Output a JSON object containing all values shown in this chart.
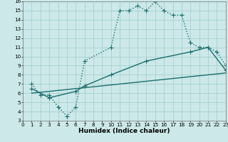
{
  "xlabel": "Humidex (Indice chaleur)",
  "bg_color": "#cce8e8",
  "grid_color": "#a0cccc",
  "line_color": "#1a6e6e",
  "xlim": [
    0,
    23
  ],
  "ylim": [
    3,
    16
  ],
  "xticks": [
    0,
    1,
    2,
    3,
    4,
    5,
    6,
    7,
    8,
    9,
    10,
    11,
    12,
    13,
    14,
    15,
    16,
    17,
    18,
    19,
    20,
    21,
    22,
    23
  ],
  "yticks": [
    3,
    4,
    5,
    6,
    7,
    8,
    9,
    10,
    11,
    12,
    13,
    14,
    15,
    16
  ],
  "line1_x": [
    1,
    2,
    3,
    4,
    5,
    6,
    7,
    10,
    11,
    12,
    13,
    14,
    15,
    16,
    17,
    18,
    19,
    20,
    21,
    22,
    23
  ],
  "line1_y": [
    7,
    5.8,
    5.8,
    4.5,
    3.5,
    4.5,
    9.5,
    11,
    15,
    15,
    15.5,
    15,
    16,
    15,
    14.5,
    14.5,
    11.5,
    11,
    11,
    10.5,
    9
  ],
  "line2_x": [
    1,
    3,
    6,
    7,
    10,
    14,
    19,
    21,
    23
  ],
  "line2_y": [
    6.5,
    5.5,
    6.2,
    6.8,
    8.0,
    9.5,
    10.5,
    11,
    8.5
  ],
  "line3_x": [
    1,
    23
  ],
  "line3_y": [
    6.0,
    8.2
  ],
  "marker": "+",
  "markersize": 4,
  "linewidth": 1.0,
  "tick_fontsize": 5.2,
  "label_fontsize": 6.5
}
